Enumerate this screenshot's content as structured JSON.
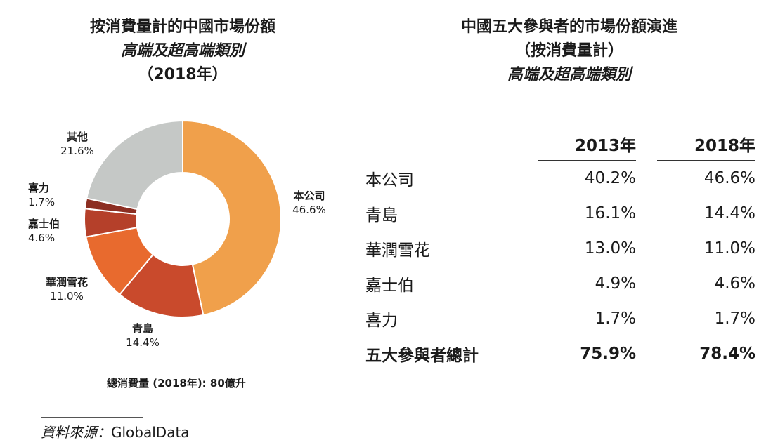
{
  "left_chart": {
    "title_line1": "按消費量計的中國市場份額",
    "title_line2": "高端及超高端類別",
    "title_line3": "（2018年）",
    "total_note": "總消費量 (2018年): 80億升"
  },
  "right_table": {
    "title_line1": "中國五大參與者的市場份額演進",
    "title_line2": "（按消費量計）",
    "title_line3": "高端及超高端類別",
    "col_2013": "2013年",
    "col_2018": "2018年",
    "rows": [
      {
        "name": "本公司",
        "y2013": "40.2%",
        "y2018": "46.6%"
      },
      {
        "name": "青島",
        "y2013": "16.1%",
        "y2018": "14.4%"
      },
      {
        "name": "華潤雪花",
        "y2013": "13.0%",
        "y2018": "11.0%"
      },
      {
        "name": "嘉士伯",
        "y2013": "4.9%",
        "y2018": "4.6%"
      },
      {
        "name": "喜力",
        "y2013": "1.7%",
        "y2018": "1.7%"
      },
      {
        "name": "五大參與者總計",
        "y2013": "75.9%",
        "y2018": "78.4%"
      }
    ]
  },
  "source": {
    "label": "資料來源：",
    "value": "GlobalData"
  },
  "chart_data": {
    "type": "pie",
    "title": "按消費量計的中國市場份額 高端及超高端類別 （2018年）",
    "categories": [
      "本公司",
      "青島",
      "華潤雪花",
      "嘉士伯",
      "喜力",
      "其他"
    ],
    "values": [
      46.6,
      14.4,
      11.0,
      4.6,
      1.7,
      21.6
    ],
    "value_labels": [
      "46.6%",
      "14.4%",
      "11.0%",
      "4.6%",
      "1.7%",
      "21.6%"
    ],
    "colors": [
      "#F0A04B",
      "#C94A2C",
      "#E86A2E",
      "#B5402A",
      "#8C2E22",
      "#C5C8C6"
    ],
    "donut": true
  }
}
